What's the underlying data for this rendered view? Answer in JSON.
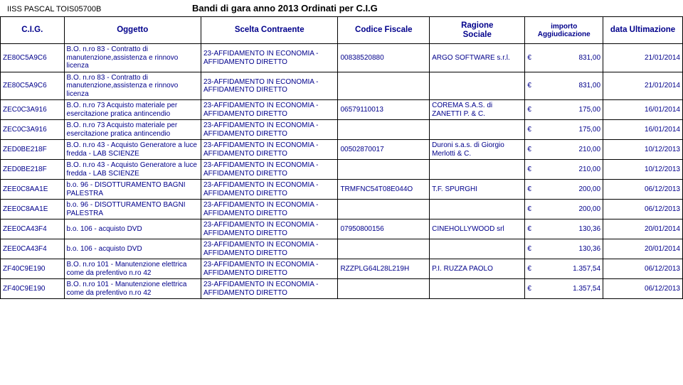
{
  "header": {
    "school_code": "IISS PASCAL TOIS05700B",
    "title": "Bandi di gara anno 2013 Ordinati per C.I.G"
  },
  "columns": {
    "cig": "C.I.G.",
    "oggetto": "Oggetto",
    "scelta": "Scelta Contraente",
    "cf": "Codice Fiscale",
    "rs_l1": "Ragione",
    "rs_l2": "Sociale",
    "imp_l1": "importo",
    "imp_l2": "Aggiudicazione",
    "data": "data Ultimazione"
  },
  "scelta_text": "23-AFFIDAMENTO IN ECONOMIA - AFFIDAMENTO DIRETTO",
  "currency": "€",
  "rows": [
    {
      "cig": "ZE80C5A9C6",
      "ogg": "B.O. n.ro 83 - Contratto di manutenzione,assistenza e rinnovo licenza",
      "cf": "00838520880",
      "rs": "ARGO SOFTWARE s.r.l.",
      "imp": "831,00",
      "data": "21/01/2014"
    },
    {
      "cig": "ZE80C5A9C6",
      "ogg": "B.O. n.ro 83 - Contratto di manutenzione,assistenza e rinnovo licenza",
      "cf": "",
      "rs": "",
      "imp": "831,00",
      "data": "21/01/2014"
    },
    {
      "cig": "ZEC0C3A916",
      "ogg": "B.O. n.ro 73 Acquisto materiale per esercitazione pratica antincendio",
      "cf": "06579110013",
      "rs": "COREMA S.A.S. di ZANETTI P. & C.",
      "imp": "175,00",
      "data": "16/01/2014"
    },
    {
      "cig": "ZEC0C3A916",
      "ogg": "B.O. n.ro 73 Acquisto materiale per esercitazione pratica antincendio",
      "cf": "",
      "rs": "",
      "imp": "175,00",
      "data": "16/01/2014"
    },
    {
      "cig": "ZED0BE218F",
      "ogg": "B.O. n.ro 43 - Acquisto Generatore a luce fredda  -  LAB SCIENZE",
      "cf": "00502870017",
      "rs": "Duroni  s.a.s. di Giorgio Merlotti & C.",
      "imp": "210,00",
      "data": "10/12/2013"
    },
    {
      "cig": "ZED0BE218F",
      "ogg": "B.O. n.ro 43 - Acquisto Generatore a luce fredda  -  LAB SCIENZE",
      "cf": "",
      "rs": "",
      "imp": "210,00",
      "data": "10/12/2013"
    },
    {
      "cig": "ZEE0C8AA1E",
      "ogg": "b.o. 96 - DISOTTURAMENTO BAGNI PALESTRA",
      "cf": "TRMFNC54T08E044O",
      "rs": "T.F. SPURGHI",
      "imp": "200,00",
      "data": "06/12/2013"
    },
    {
      "cig": "ZEE0C8AA1E",
      "ogg": "b.o. 96 - DISOTTURAMENTO BAGNI PALESTRA",
      "cf": "",
      "rs": "",
      "imp": "200,00",
      "data": "06/12/2013"
    },
    {
      "cig": "ZEE0CA43F4",
      "ogg": "b.o. 106 - acquisto DVD",
      "cf": "07950800156",
      "rs": "CINEHOLLYWOOD srl",
      "imp": "130,36",
      "data": "20/01/2014"
    },
    {
      "cig": "ZEE0CA43F4",
      "ogg": "b.o. 106 - acquisto DVD",
      "cf": "",
      "rs": "",
      "imp": "130,36",
      "data": "20/01/2014"
    },
    {
      "cig": "ZF40C9E190",
      "ogg": "B.O. n.ro 101 - Manutenzione elettrica come da prefentivo n.ro 42",
      "cf": "RZZPLG64L28L219H",
      "rs": "P.I. RUZZA PAOLO",
      "imp": "1.357,54",
      "data": "06/12/2013"
    },
    {
      "cig": "ZF40C9E190",
      "ogg": "B.O. n.ro 101 - Manutenzione elettrica come da prefentivo n.ro 42",
      "cf": "",
      "rs": "",
      "imp": "1.357,54",
      "data": "06/12/2013"
    }
  ]
}
